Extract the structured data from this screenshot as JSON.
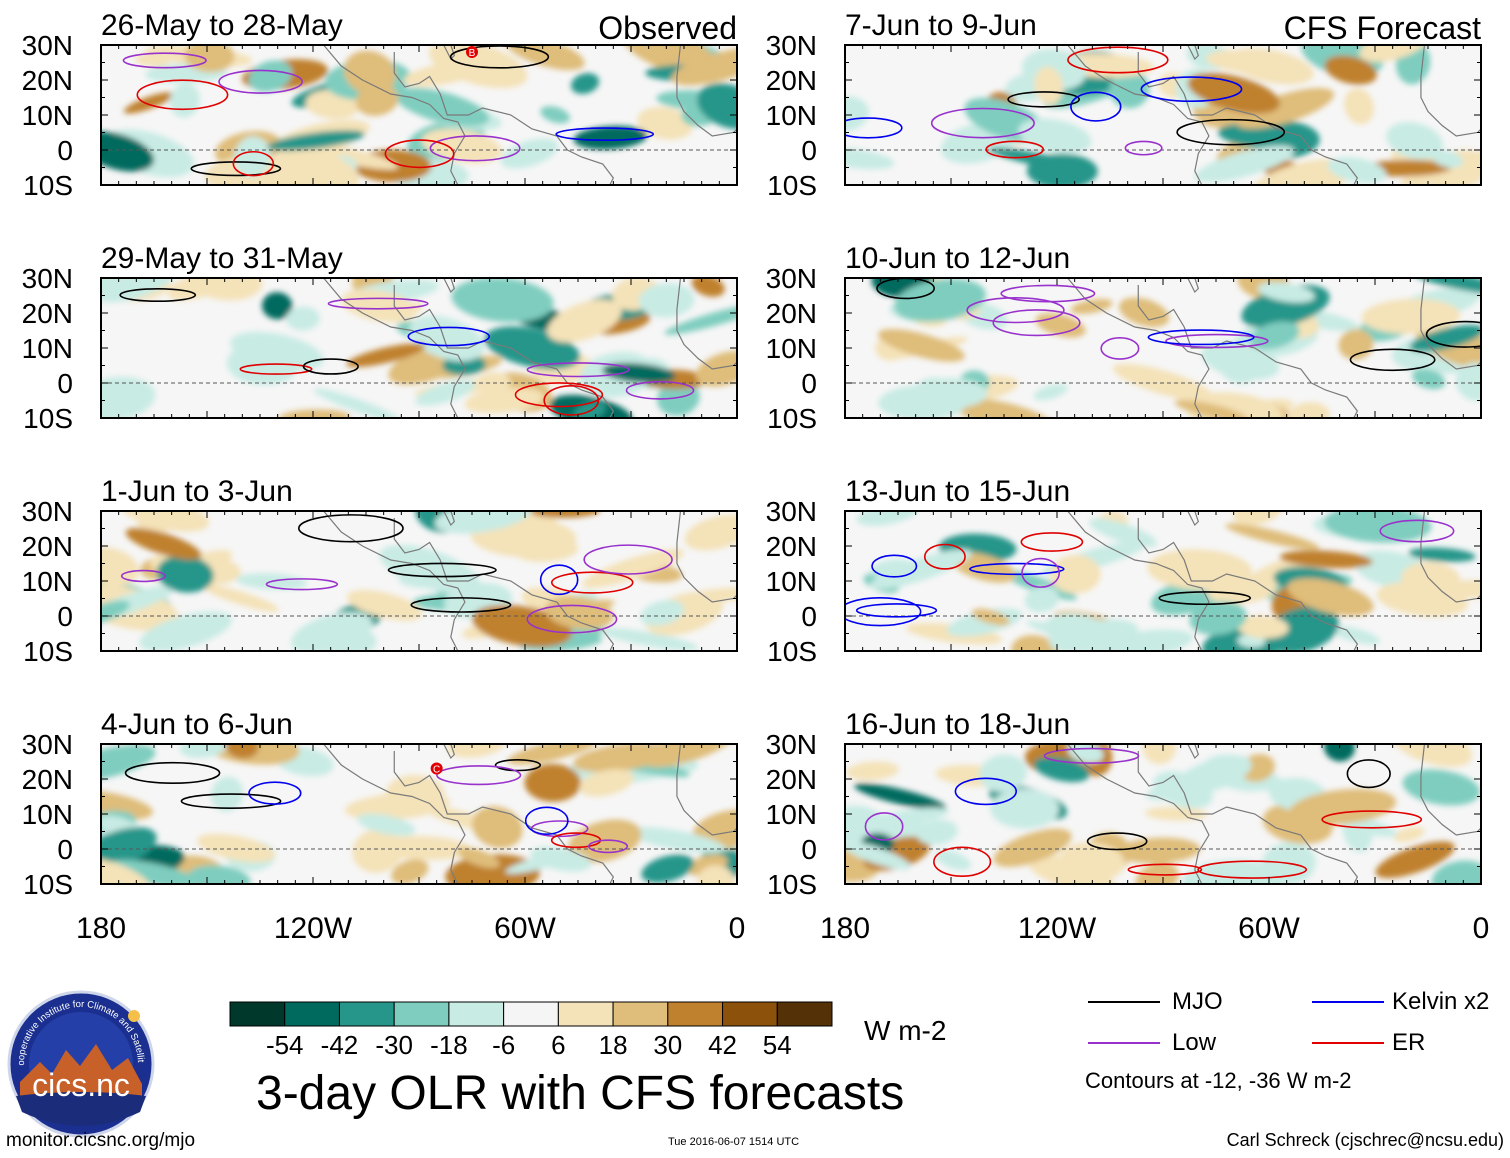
{
  "chart_data": {
    "type": "heatmap",
    "title": "3-day OLR with CFS forecasts",
    "column_headers": {
      "observed": "Observed",
      "forecast": "CFS Forecast"
    },
    "latitude_ticks": [
      "30N",
      "20N",
      "10N",
      "0",
      "10S"
    ],
    "longitude_ticks": [
      "180",
      "120W",
      "60W",
      "0"
    ],
    "panels_observed": [
      {
        "title": "26-May to 28-May"
      },
      {
        "title": "29-May to 31-May"
      },
      {
        "title": "1-Jun to 3-Jun"
      },
      {
        "title": "4-Jun to 6-Jun"
      }
    ],
    "panels_forecast": [
      {
        "title": "7-Jun to 9-Jun"
      },
      {
        "title": "10-Jun to 12-Jun"
      },
      {
        "title": "13-Jun to 15-Jun"
      },
      {
        "title": "16-Jun to 18-Jun"
      }
    ],
    "colorbar": {
      "units": "W m-2",
      "tick_labels": [
        "-54",
        "-42",
        "-30",
        "-18",
        "-6",
        "6",
        "18",
        "30",
        "42",
        "54"
      ],
      "colors": [
        "#01382c",
        "#016a5f",
        "#27968a",
        "#7fcdbf",
        "#c8ebe4",
        "#f5f5f5",
        "#f4e2b8",
        "#dfbd7a",
        "#bf812d",
        "#8c510a",
        "#553108"
      ]
    },
    "legend": [
      {
        "label": "MJO",
        "color": "#000000"
      },
      {
        "label": "Kelvin x2",
        "color": "#0000ee"
      },
      {
        "label": "Low",
        "color": "#9932cc"
      },
      {
        "label": "ER",
        "color": "#e00000"
      }
    ],
    "contour_note": "Contours at -12, -36 W m-2",
    "storm_labels": [
      "B",
      "C"
    ]
  },
  "footer": {
    "url": "monitor.cicsnc.org/mjo",
    "timestamp": "Tue 2016-06-07 1514 UTC",
    "credit": "Carl Schreck (cjschrec@ncsu.edu)"
  },
  "logo": {
    "ring_text": "Cooperative Institute for Climate and Satellites",
    "name": "cics.nc"
  }
}
